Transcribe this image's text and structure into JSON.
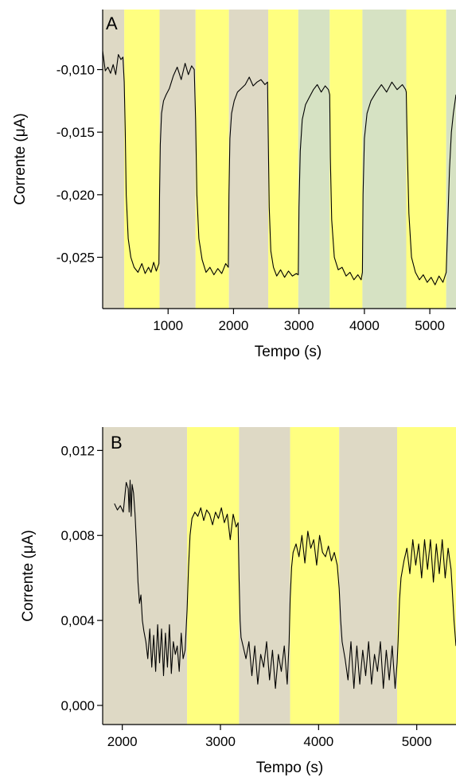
{
  "chart_data": [
    {
      "panel": "A",
      "type": "line",
      "xlabel": "Tempo (s)",
      "ylabel": "Corrente (μA)",
      "xlim": [
        0,
        5400
      ],
      "ylim": [
        -0.0291,
        -0.0052
      ],
      "xticks": [
        1000,
        2000,
        3000,
        4000,
        5000
      ],
      "xtick_labels": [
        "1000",
        "2000",
        "3000",
        "4000",
        "5000"
      ],
      "yticks": [
        -0.01,
        -0.015,
        -0.02,
        -0.025
      ],
      "ytick_labels": [
        "-0,010",
        "-0,015",
        "-0,020",
        "-0,025"
      ],
      "bands": [
        {
          "start": 0,
          "end": 330,
          "color": "#ded9c5"
        },
        {
          "start": 330,
          "end": 870,
          "color": "#ffff80"
        },
        {
          "start": 870,
          "end": 1420,
          "color": "#ded9c5"
        },
        {
          "start": 1420,
          "end": 1930,
          "color": "#ffff80"
        },
        {
          "start": 1930,
          "end": 2530,
          "color": "#ded9c5"
        },
        {
          "start": 2530,
          "end": 2990,
          "color": "#ffff80"
        },
        {
          "start": 2990,
          "end": 3470,
          "color": "#d6e2c3"
        },
        {
          "start": 3470,
          "end": 3970,
          "color": "#ffff80"
        },
        {
          "start": 3970,
          "end": 4640,
          "color": "#d6e2c3"
        },
        {
          "start": 4640,
          "end": 5250,
          "color": "#ffff80"
        },
        {
          "start": 5250,
          "end": 5400,
          "color": "#d6e2c3"
        }
      ],
      "series": [
        {
          "x": [
            0,
            40,
            80,
            120,
            160,
            200,
            240,
            280,
            310,
            330,
            345,
            360,
            390,
            430,
            480,
            540,
            600,
            650,
            700,
            740,
            780,
            820,
            860,
            870,
            880,
            900,
            930,
            970,
            1020,
            1080,
            1140,
            1200,
            1260,
            1310,
            1360,
            1400,
            1420,
            1440,
            1470,
            1520,
            1580,
            1640,
            1700,
            1760,
            1820,
            1880,
            1920,
            1930,
            1945,
            1970,
            2010,
            2060,
            2120,
            2180,
            2240,
            2300,
            2360,
            2420,
            2480,
            2520,
            2530,
            2545,
            2570,
            2610,
            2660,
            2720,
            2780,
            2840,
            2900,
            2960,
            2990,
            3000,
            3020,
            3050,
            3100,
            3160,
            3220,
            3280,
            3340,
            3400,
            3450,
            3470,
            3480,
            3500,
            3540,
            3600,
            3660,
            3720,
            3780,
            3840,
            3900,
            3950,
            3970,
            3980,
            4000,
            4040,
            4100,
            4180,
            4260,
            4340,
            4420,
            4500,
            4580,
            4630,
            4640,
            4655,
            4680,
            4720,
            4780,
            4840,
            4900,
            4960,
            5020,
            5080,
            5140,
            5200,
            5250,
            5270,
            5300,
            5330,
            5360,
            5400
          ],
          "y": [
            -0.0085,
            -0.0101,
            -0.0098,
            -0.0103,
            -0.0096,
            -0.0104,
            -0.0088,
            -0.0092,
            -0.009,
            -0.011,
            -0.015,
            -0.02,
            -0.0235,
            -0.025,
            -0.0258,
            -0.0262,
            -0.0255,
            -0.0263,
            -0.0258,
            -0.0262,
            -0.0254,
            -0.0261,
            -0.0255,
            -0.02,
            -0.016,
            -0.0135,
            -0.0125,
            -0.012,
            -0.0115,
            -0.0105,
            -0.0098,
            -0.0108,
            -0.0095,
            -0.0104,
            -0.0097,
            -0.01,
            -0.014,
            -0.02,
            -0.0235,
            -0.0252,
            -0.0262,
            -0.0258,
            -0.0264,
            -0.0259,
            -0.0263,
            -0.0255,
            -0.0258,
            -0.02,
            -0.0155,
            -0.0135,
            -0.0125,
            -0.0118,
            -0.0115,
            -0.0112,
            -0.0106,
            -0.0113,
            -0.011,
            -0.0108,
            -0.0112,
            -0.011,
            -0.015,
            -0.021,
            -0.0245,
            -0.0258,
            -0.0265,
            -0.026,
            -0.0266,
            -0.0261,
            -0.0265,
            -0.0263,
            -0.0264,
            -0.021,
            -0.0165,
            -0.014,
            -0.0128,
            -0.0122,
            -0.0116,
            -0.0112,
            -0.0118,
            -0.0113,
            -0.0116,
            -0.012,
            -0.017,
            -0.022,
            -0.025,
            -0.026,
            -0.0258,
            -0.0265,
            -0.0262,
            -0.0268,
            -0.0264,
            -0.0268,
            -0.0262,
            -0.02,
            -0.0155,
            -0.0135,
            -0.0125,
            -0.0118,
            -0.0112,
            -0.0118,
            -0.011,
            -0.0116,
            -0.0112,
            -0.0116,
            -0.0118,
            -0.016,
            -0.0215,
            -0.025,
            -0.0262,
            -0.0268,
            -0.0264,
            -0.027,
            -0.0266,
            -0.0272,
            -0.0265,
            -0.027,
            -0.0262,
            -0.023,
            -0.018,
            -0.015,
            -0.0135,
            -0.012
          ]
        }
      ]
    },
    {
      "panel": "B",
      "type": "line",
      "xlabel": "Tempo (s)",
      "ylabel": "Corrente (μA)",
      "xlim": [
        1800,
        5400
      ],
      "ylim": [
        -0.0009,
        0.0131
      ],
      "xticks": [
        2000,
        3000,
        4000,
        5000
      ],
      "xtick_labels": [
        "2000",
        "3000",
        "4000",
        "5000"
      ],
      "yticks": [
        0.0,
        0.004,
        0.008,
        0.012
      ],
      "ytick_labels": [
        "0,000",
        "0,004",
        "0,008",
        "0,012"
      ],
      "bands": [
        {
          "start": 1800,
          "end": 2660,
          "color": "#ded9c5"
        },
        {
          "start": 2660,
          "end": 3190,
          "color": "#ffff80"
        },
        {
          "start": 3190,
          "end": 3710,
          "color": "#ded9c5"
        },
        {
          "start": 3710,
          "end": 4210,
          "color": "#ffff80"
        },
        {
          "start": 4210,
          "end": 4800,
          "color": "#ded9c5"
        },
        {
          "start": 4800,
          "end": 5400,
          "color": "#ffff80"
        }
      ],
      "series": [
        {
          "x": [
            1920,
            1950,
            1980,
            2010,
            2040,
            2060,
            2070,
            2080,
            2090,
            2100,
            2115,
            2130,
            2145,
            2160,
            2175,
            2190,
            2205,
            2220,
            2240,
            2260,
            2280,
            2300,
            2320,
            2340,
            2360,
            2380,
            2400,
            2420,
            2440,
            2460,
            2480,
            2500,
            2520,
            2540,
            2560,
            2580,
            2600,
            2620,
            2640,
            2660,
            2675,
            2690,
            2710,
            2740,
            2770,
            2800,
            2830,
            2860,
            2890,
            2920,
            2950,
            2980,
            3010,
            3040,
            3070,
            3100,
            3130,
            3160,
            3180,
            3190,
            3200,
            3210,
            3230,
            3260,
            3290,
            3320,
            3350,
            3380,
            3410,
            3440,
            3470,
            3500,
            3530,
            3560,
            3590,
            3620,
            3650,
            3680,
            3700,
            3710,
            3725,
            3740,
            3770,
            3800,
            3830,
            3860,
            3890,
            3920,
            3950,
            3980,
            4010,
            4040,
            4070,
            4100,
            4130,
            4160,
            4190,
            4210,
            4225,
            4240,
            4270,
            4300,
            4330,
            4360,
            4390,
            4420,
            4450,
            4480,
            4510,
            4540,
            4570,
            4600,
            4630,
            4660,
            4690,
            4720,
            4750,
            4780,
            4800,
            4810,
            4825,
            4840,
            4870,
            4900,
            4930,
            4960,
            4990,
            5020,
            5050,
            5080,
            5110,
            5140,
            5170,
            5200,
            5230,
            5260,
            5290,
            5320,
            5350,
            5380,
            5400
          ],
          "y": [
            0.0095,
            0.0092,
            0.0094,
            0.0091,
            0.0105,
            0.0102,
            0.0091,
            0.0106,
            0.0089,
            0.0104,
            0.01,
            0.009,
            0.0075,
            0.0058,
            0.0048,
            0.0052,
            0.004,
            0.0035,
            0.003,
            0.0022,
            0.0036,
            0.0018,
            0.0033,
            0.0016,
            0.0038,
            0.002,
            0.0036,
            0.0014,
            0.0034,
            0.0018,
            0.0038,
            0.0015,
            0.003,
            0.0024,
            0.0028,
            0.0016,
            0.0034,
            0.0022,
            0.0026,
            0.0045,
            0.0065,
            0.008,
            0.0088,
            0.0091,
            0.0089,
            0.0093,
            0.0087,
            0.0092,
            0.009,
            0.0085,
            0.0091,
            0.0088,
            0.0093,
            0.0086,
            0.009,
            0.0078,
            0.009,
            0.0084,
            0.0086,
            0.006,
            0.004,
            0.0032,
            0.0028,
            0.0022,
            0.003,
            0.0014,
            0.0028,
            0.001,
            0.0024,
            0.0018,
            0.003,
            0.0012,
            0.0026,
            0.0008,
            0.0024,
            0.0016,
            0.0028,
            0.001,
            0.003,
            0.005,
            0.0065,
            0.0072,
            0.0076,
            0.007,
            0.008,
            0.0067,
            0.0082,
            0.0074,
            0.0078,
            0.0066,
            0.008,
            0.0072,
            0.007,
            0.0075,
            0.0068,
            0.0072,
            0.0066,
            0.0055,
            0.004,
            0.003,
            0.0022,
            0.0012,
            0.003,
            0.0008,
            0.0028,
            0.001,
            0.0026,
            0.0014,
            0.003,
            0.001,
            0.0024,
            0.0016,
            0.003,
            0.0008,
            0.0026,
            0.0012,
            0.0028,
            0.0008,
            0.002,
            0.003,
            0.005,
            0.006,
            0.0068,
            0.0074,
            0.0062,
            0.0078,
            0.0066,
            0.0076,
            0.006,
            0.0078,
            0.0064,
            0.0078,
            0.0058,
            0.0076,
            0.0062,
            0.0078,
            0.006,
            0.0074,
            0.0064,
            0.004,
            0.0028
          ]
        }
      ]
    }
  ]
}
